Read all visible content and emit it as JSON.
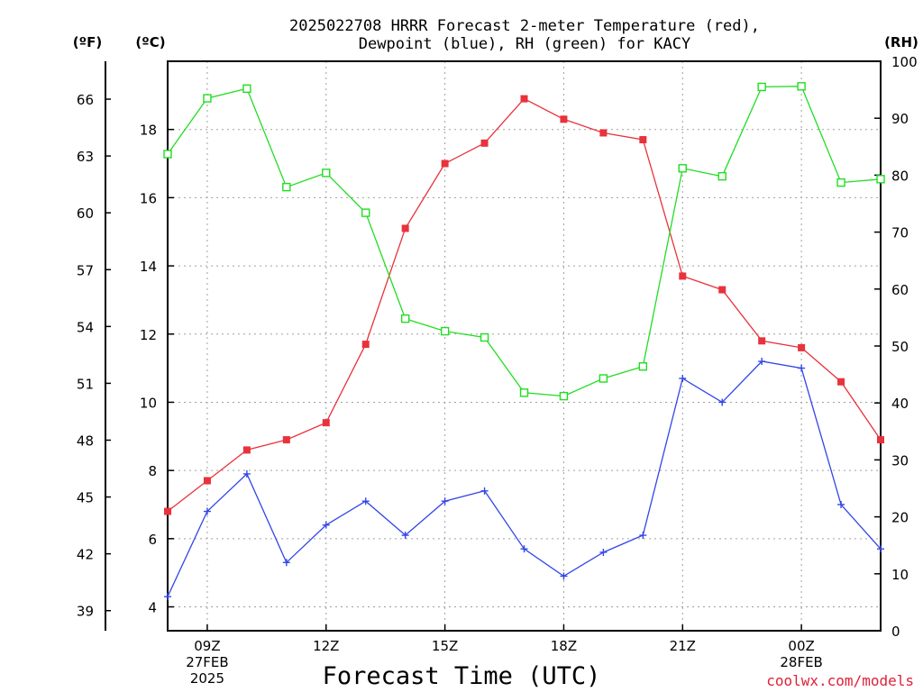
{
  "chart_data": {
    "type": "line",
    "title_line1": "2025022708 HRRR Forecast 2-meter Temperature (red),",
    "title_line2": "Dewpoint (blue), RH (green) for KACY",
    "xlabel": "Forecast Time (UTC)",
    "units": {
      "fahrenheit": "(ºF)",
      "celsius": "(ºC)",
      "rh": "(RH)"
    },
    "credit": "coolwx.com/models",
    "x_ticks": [
      {
        "hour": 9,
        "lines": [
          "09Z",
          "27FEB",
          "2025"
        ]
      },
      {
        "hour": 12,
        "lines": [
          "12Z"
        ]
      },
      {
        "hour": 15,
        "lines": [
          "15Z"
        ]
      },
      {
        "hour": 18,
        "lines": [
          "18Z"
        ]
      },
      {
        "hour": 21,
        "lines": [
          "21Z"
        ]
      },
      {
        "hour": 24,
        "lines": [
          "00Z",
          "28FEB"
        ]
      }
    ],
    "x_range_hours": [
      8,
      26
    ],
    "x_hours": [
      8,
      9,
      10,
      11,
      12,
      13,
      14,
      15,
      16,
      17,
      18,
      19,
      20,
      21,
      22,
      23,
      24,
      25,
      26
    ],
    "celsius_ticks": [
      4,
      6,
      8,
      10,
      12,
      14,
      16,
      18
    ],
    "celsius_ylim": [
      3.3,
      20.0
    ],
    "fahrenheit_ticks": [
      39,
      42,
      45,
      48,
      51,
      54,
      57,
      60,
      63,
      66
    ],
    "rh_ticks": [
      0,
      10,
      20,
      30,
      40,
      50,
      60,
      70,
      80,
      90,
      100
    ],
    "rh_ylim": [
      0,
      100
    ],
    "series": [
      {
        "name": "Temperature",
        "color": "#e8323c",
        "marker": "filled-square",
        "axis": "celsius",
        "values": [
          6.8,
          7.7,
          8.6,
          8.9,
          9.4,
          11.7,
          15.1,
          17.0,
          17.6,
          18.9,
          18.3,
          17.9,
          17.7,
          13.7,
          13.3,
          11.8,
          11.6,
          10.6,
          8.9
        ]
      },
      {
        "name": "Dewpoint",
        "color": "#3246e6",
        "marker": "plus",
        "axis": "celsius",
        "values": [
          4.3,
          6.8,
          7.9,
          5.3,
          6.4,
          7.1,
          6.1,
          7.1,
          7.4,
          5.7,
          4.9,
          5.6,
          6.1,
          10.7,
          10.0,
          11.2,
          11.0,
          7.0,
          5.7
        ]
      },
      {
        "name": "RH",
        "color": "#22dd22",
        "marker": "open-square",
        "axis": "rh",
        "values": [
          83.7,
          93.5,
          95.2,
          77.9,
          80.4,
          73.4,
          54.8,
          52.6,
          51.5,
          41.8,
          41.2,
          44.3,
          46.4,
          81.2,
          79.8,
          95.5,
          95.6,
          78.7,
          79.3
        ]
      }
    ],
    "grid": true
  }
}
